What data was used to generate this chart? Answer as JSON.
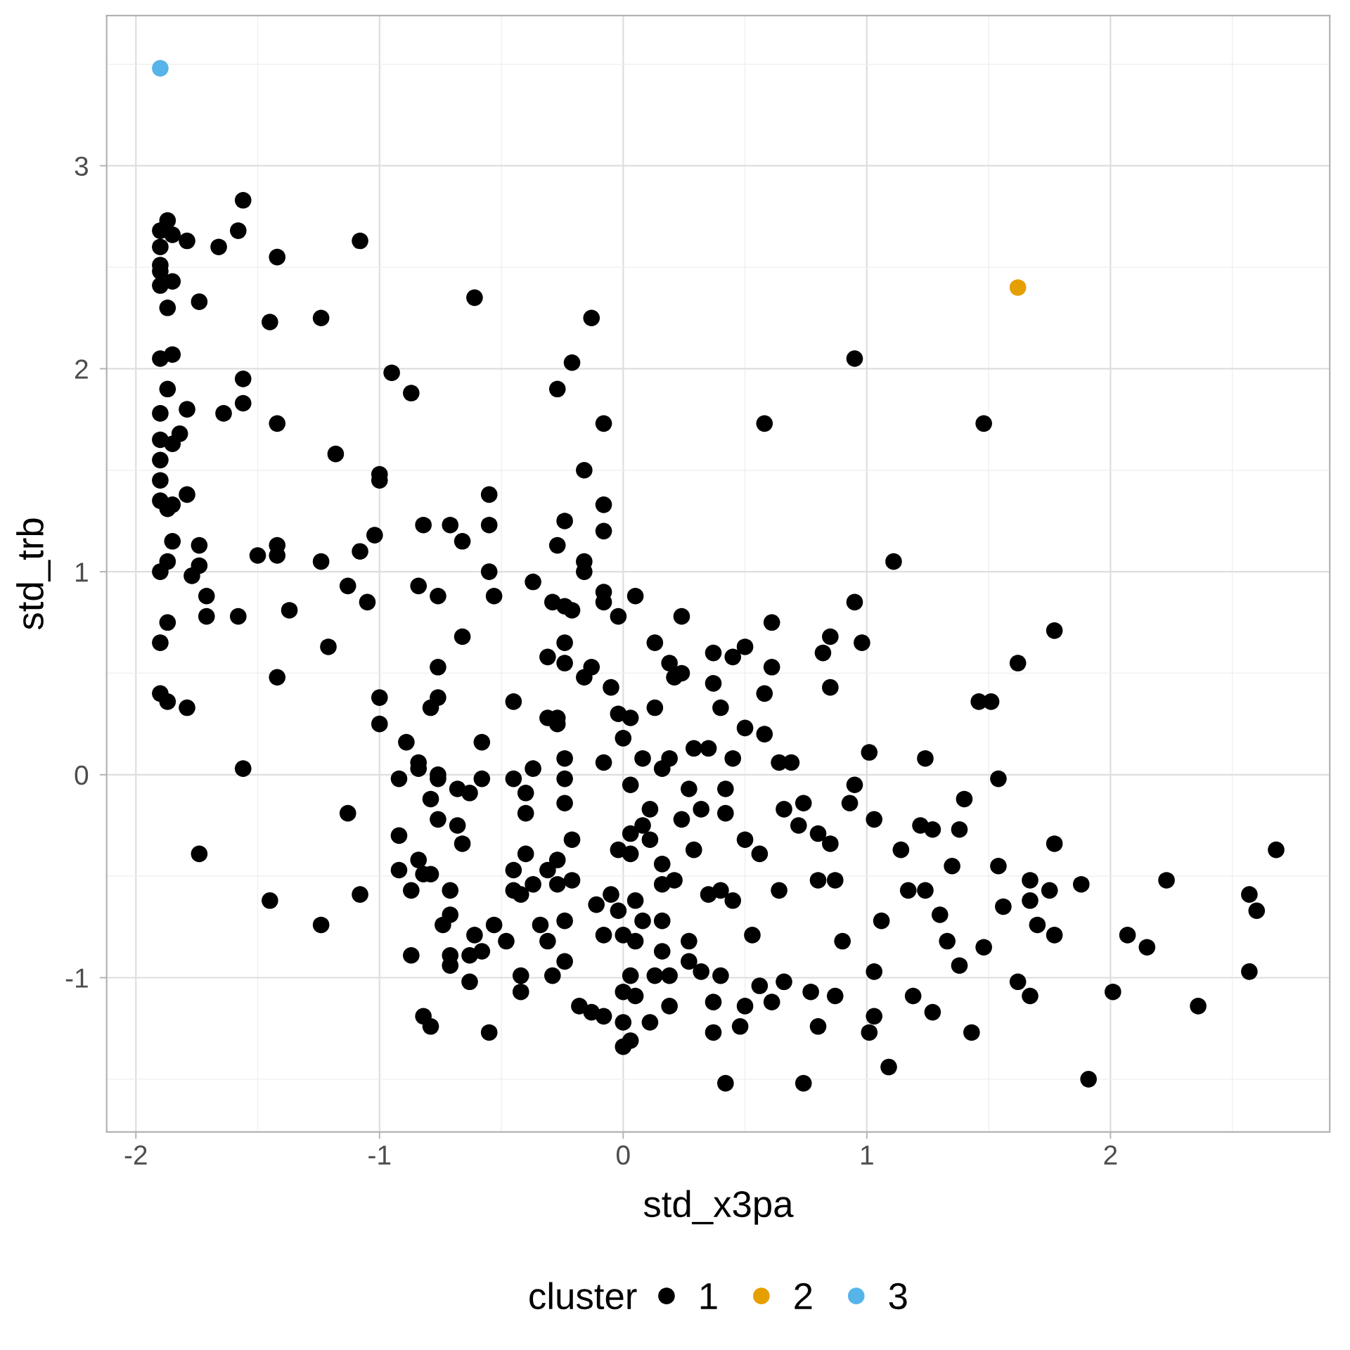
{
  "chart_data": {
    "type": "scatter",
    "xlabel": "std_x3pa",
    "ylabel": "std_trb",
    "legend_title": "cluster",
    "xlim": [
      -2.12,
      2.9
    ],
    "ylim": [
      -1.76,
      3.74
    ],
    "xticks": [
      -2,
      -1,
      0,
      1,
      2
    ],
    "yticks": [
      -1,
      0,
      1,
      2,
      3
    ],
    "grid": true,
    "legend": "bottom",
    "marker": "circle",
    "series": [
      {
        "name": "1",
        "color": "#000000",
        "x": [
          -1.9,
          -1.87,
          -1.9,
          -1.9,
          -1.9,
          -1.9,
          -1.85,
          -1.79,
          -1.85,
          -1.87,
          -1.74,
          -1.9,
          -1.85,
          -1.87,
          -1.9,
          -1.79,
          -1.82,
          -1.9,
          -1.85,
          -1.9,
          -1.9,
          -1.79,
          -1.9,
          -1.87,
          -1.85,
          -1.85,
          -1.74,
          -1.87,
          -1.9,
          -1.74,
          -1.77,
          -1.71,
          -1.87,
          -1.71,
          -1.9,
          -1.9,
          -1.87,
          -1.79,
          -1.74,
          -1.66,
          -1.64,
          -1.58,
          -1.56,
          -1.56,
          -1.56,
          -1.58,
          -1.56,
          -1.5,
          -1.45,
          -1.42,
          -1.42,
          -1.42,
          -1.42,
          -1.42,
          -1.45,
          -1.37,
          -1.24,
          -1.24,
          -1.21,
          -1.24,
          -1.18,
          -1.13,
          -1.13,
          -1.08,
          -1.08,
          -1.08,
          -1.05,
          -1.02,
          -1.0,
          -1.0,
          -1.0,
          -1.0,
          -0.95,
          -0.92,
          -0.92,
          -0.92,
          -0.89,
          -0.87,
          -0.87,
          -0.87,
          -0.84,
          -0.84,
          -0.84,
          -0.84,
          -0.82,
          -0.82,
          -0.82,
          -0.79,
          -0.79,
          -0.79,
          -0.79,
          -0.76,
          -0.76,
          -0.76,
          -0.76,
          -0.76,
          -0.76,
          -0.74,
          -0.71,
          -0.71,
          -0.71,
          -0.71,
          -0.71,
          -0.68,
          -0.68,
          -0.66,
          -0.66,
          -0.66,
          -0.63,
          -0.63,
          -0.63,
          -0.61,
          -0.61,
          -0.58,
          -0.58,
          -0.58,
          -0.55,
          -0.55,
          -0.55,
          -0.55,
          -0.53,
          -0.53,
          -0.48,
          -0.45,
          -0.45,
          -0.45,
          -0.45,
          -0.42,
          -0.42,
          -0.42,
          -0.4,
          -0.4,
          -0.4,
          -0.37,
          -0.37,
          -0.37,
          -0.34,
          -0.31,
          -0.31,
          -0.31,
          -0.31,
          -0.29,
          -0.29,
          -0.27,
          -0.27,
          -0.27,
          -0.27,
          -0.27,
          -0.27,
          -0.24,
          -0.24,
          -0.24,
          -0.24,
          -0.24,
          -0.24,
          -0.24,
          -0.24,
          -0.24,
          -0.21,
          -0.21,
          -0.21,
          -0.21,
          -0.18,
          -0.16,
          -0.16,
          -0.16,
          -0.16,
          -0.13,
          -0.13,
          -0.13,
          -0.11,
          -0.08,
          -0.08,
          -0.08,
          -0.08,
          -0.08,
          -0.08,
          -0.08,
          -0.08,
          -0.05,
          -0.05,
          -0.02,
          -0.02,
          -0.02,
          -0.02,
          0.0,
          0.0,
          0.0,
          0.0,
          0.0,
          0.03,
          0.03,
          0.03,
          0.03,
          0.03,
          0.03,
          0.05,
          0.05,
          0.05,
          0.05,
          0.08,
          0.08,
          0.08,
          0.11,
          0.11,
          0.11,
          0.13,
          0.13,
          0.13,
          0.16,
          0.16,
          0.16,
          0.16,
          0.16,
          0.19,
          0.19,
          0.19,
          0.19,
          0.21,
          0.21,
          0.24,
          0.24,
          0.24,
          0.27,
          0.27,
          0.27,
          0.29,
          0.29,
          0.32,
          0.32,
          0.35,
          0.35,
          0.37,
          0.37,
          0.37,
          0.37,
          0.4,
          0.4,
          0.4,
          0.42,
          0.42,
          0.42,
          0.45,
          0.45,
          0.45,
          0.48,
          0.5,
          0.5,
          0.5,
          0.5,
          0.53,
          0.56,
          0.56,
          0.58,
          0.58,
          0.58,
          0.61,
          0.61,
          0.61,
          0.64,
          0.64,
          0.66,
          0.66,
          0.69,
          0.72,
          0.74,
          0.74,
          0.77,
          0.8,
          0.8,
          0.8,
          0.82,
          0.85,
          0.85,
          0.85,
          0.87,
          0.87,
          0.9,
          0.93,
          0.95,
          0.95,
          0.95,
          0.98,
          1.01,
          1.01,
          1.03,
          1.03,
          1.03,
          1.06,
          1.09,
          1.11,
          1.14,
          1.17,
          1.19,
          1.22,
          1.24,
          1.24,
          1.27,
          1.27,
          1.3,
          1.33,
          1.35,
          1.38,
          1.38,
          1.4,
          1.43,
          1.46,
          1.48,
          1.48,
          1.51,
          1.54,
          1.54,
          1.56,
          1.62,
          1.62,
          1.67,
          1.67,
          1.67,
          1.7,
          1.75,
          1.77,
          1.77,
          1.77,
          1.88,
          1.91,
          2.01,
          2.07,
          2.15,
          2.23,
          2.36,
          2.57,
          2.57,
          2.6,
          2.68
        ],
        "values": [
          2.68,
          2.73,
          2.6,
          2.51,
          2.48,
          2.41,
          2.66,
          2.63,
          2.43,
          2.3,
          2.33,
          2.05,
          2.07,
          1.9,
          1.78,
          1.8,
          1.68,
          1.65,
          1.63,
          1.55,
          1.45,
          1.38,
          1.35,
          1.31,
          1.33,
          1.15,
          1.13,
          1.05,
          1.0,
          1.03,
          0.98,
          0.88,
          0.75,
          0.78,
          0.65,
          0.4,
          0.36,
          0.33,
          -0.39,
          2.6,
          1.78,
          2.68,
          2.83,
          1.95,
          1.83,
          0.78,
          0.03,
          1.08,
          2.23,
          2.55,
          1.73,
          1.13,
          1.08,
          0.48,
          -0.62,
          0.81,
          2.25,
          1.05,
          0.63,
          -0.74,
          1.58,
          0.93,
          -0.19,
          2.63,
          1.1,
          -0.59,
          0.85,
          1.18,
          1.48,
          1.45,
          0.38,
          0.25,
          1.98,
          -0.02,
          -0.3,
          -0.47,
          0.16,
          1.88,
          -0.57,
          -0.89,
          0.93,
          0.06,
          0.03,
          -0.42,
          1.23,
          -0.49,
          -1.19,
          0.33,
          -0.12,
          -0.49,
          -1.24,
          0.88,
          0.53,
          0.38,
          0.0,
          -0.02,
          -0.22,
          -0.74,
          1.23,
          -0.57,
          -0.69,
          -0.89,
          -0.94,
          -0.07,
          -0.25,
          1.15,
          0.68,
          -0.34,
          -0.09,
          -0.89,
          -1.02,
          2.35,
          -0.79,
          0.16,
          -0.02,
          -0.87,
          1.38,
          1.23,
          1.0,
          -1.27,
          0.88,
          -0.74,
          -0.82,
          0.36,
          -0.02,
          -0.47,
          -0.57,
          -0.99,
          -1.07,
          -0.59,
          -0.09,
          -0.19,
          -0.39,
          0.95,
          0.03,
          -0.54,
          -0.74,
          0.58,
          0.28,
          -0.47,
          -0.82,
          0.85,
          -0.99,
          1.9,
          1.13,
          0.28,
          0.25,
          -0.42,
          -0.54,
          1.25,
          0.83,
          0.65,
          0.55,
          0.08,
          -0.02,
          -0.14,
          -0.72,
          -0.92,
          2.03,
          -0.32,
          -0.52,
          0.81,
          -1.14,
          1.5,
          1.05,
          1.0,
          0.48,
          2.25,
          0.53,
          -1.17,
          -0.64,
          1.73,
          1.33,
          1.2,
          0.9,
          0.85,
          0.06,
          -0.79,
          -1.19,
          0.43,
          -0.59,
          0.78,
          0.3,
          -0.37,
          -0.67,
          0.18,
          -0.79,
          -1.07,
          -1.22,
          -1.34,
          0.28,
          -0.05,
          -0.29,
          -0.39,
          -0.99,
          -1.31,
          0.88,
          -0.62,
          -0.82,
          -1.09,
          0.08,
          -0.25,
          -0.72,
          -0.17,
          -0.32,
          -1.22,
          0.65,
          0.33,
          -0.99,
          0.03,
          -0.44,
          -0.54,
          -0.72,
          -0.87,
          0.55,
          0.08,
          -1.14,
          -0.99,
          0.48,
          -0.52,
          0.78,
          -0.22,
          0.5,
          -0.92,
          -0.82,
          -0.07,
          0.13,
          -0.37,
          -0.17,
          -0.97,
          0.13,
          -0.59,
          0.6,
          0.45,
          -1.12,
          -1.27,
          0.33,
          -0.57,
          -0.99,
          -0.07,
          -0.19,
          -1.52,
          0.58,
          0.08,
          -0.62,
          -1.24,
          0.63,
          0.23,
          -0.32,
          -1.14,
          -0.79,
          -0.39,
          -1.04,
          1.73,
          0.4,
          0.2,
          0.75,
          0.53,
          -1.12,
          0.06,
          -0.57,
          -0.17,
          -1.02,
          0.06,
          -0.25,
          -0.14,
          -1.52,
          -1.07,
          -0.29,
          -0.52,
          -1.24,
          0.6,
          0.68,
          0.43,
          -0.34,
          -0.52,
          -1.09,
          -0.82,
          -0.14,
          2.05,
          0.85,
          -0.05,
          0.65,
          0.11,
          -1.27,
          -0.22,
          -0.97,
          -1.19,
          -0.72,
          -1.44,
          1.05,
          -0.37,
          -0.57,
          -1.09,
          -0.25,
          0.08,
          -0.57,
          -0.27,
          -1.17,
          -0.69,
          -0.82,
          -0.45,
          -0.27,
          -0.94,
          -0.12,
          -1.27,
          0.36,
          1.73,
          -0.85,
          0.36,
          -0.02,
          -0.45,
          -0.65,
          0.55,
          -1.02,
          -0.52,
          -0.62,
          -1.09,
          -0.74,
          -0.57,
          0.71,
          -0.34,
          -0.79,
          -0.54,
          -1.5,
          -1.07,
          -0.79,
          -0.85,
          -0.52,
          -1.14,
          -0.59,
          -0.97,
          -0.67,
          -0.37
        ]
      },
      {
        "name": "2",
        "color": "#E69F00",
        "x": [
          1.62
        ],
        "values": [
          2.4
        ]
      },
      {
        "name": "3",
        "color": "#56B4E9",
        "x": [
          -1.9
        ],
        "values": [
          3.48
        ]
      }
    ]
  }
}
